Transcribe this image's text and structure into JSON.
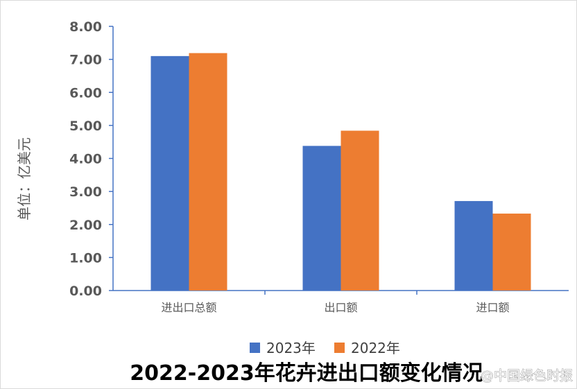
{
  "chart_data": {
    "type": "bar",
    "title": "2022-2023年花卉进出口额变化情况",
    "ylabel": "单位：亿美元",
    "xlabel": "",
    "categories": [
      "进出口总额",
      "出口额",
      "进口额"
    ],
    "series": [
      {
        "name": "2023年",
        "color": "#4472c4",
        "values": [
          7.1,
          4.38,
          2.71
        ]
      },
      {
        "name": "2022年",
        "color": "#ed7d31",
        "values": [
          7.19,
          4.84,
          2.33
        ]
      }
    ],
    "ylim": [
      0,
      8
    ],
    "yticks": [
      "0.00",
      "1.00",
      "2.00",
      "3.00",
      "4.00",
      "5.00",
      "6.00",
      "7.00",
      "8.00"
    ],
    "grid": false,
    "legend": "bottom"
  },
  "watermark": "@中国绿色时报"
}
